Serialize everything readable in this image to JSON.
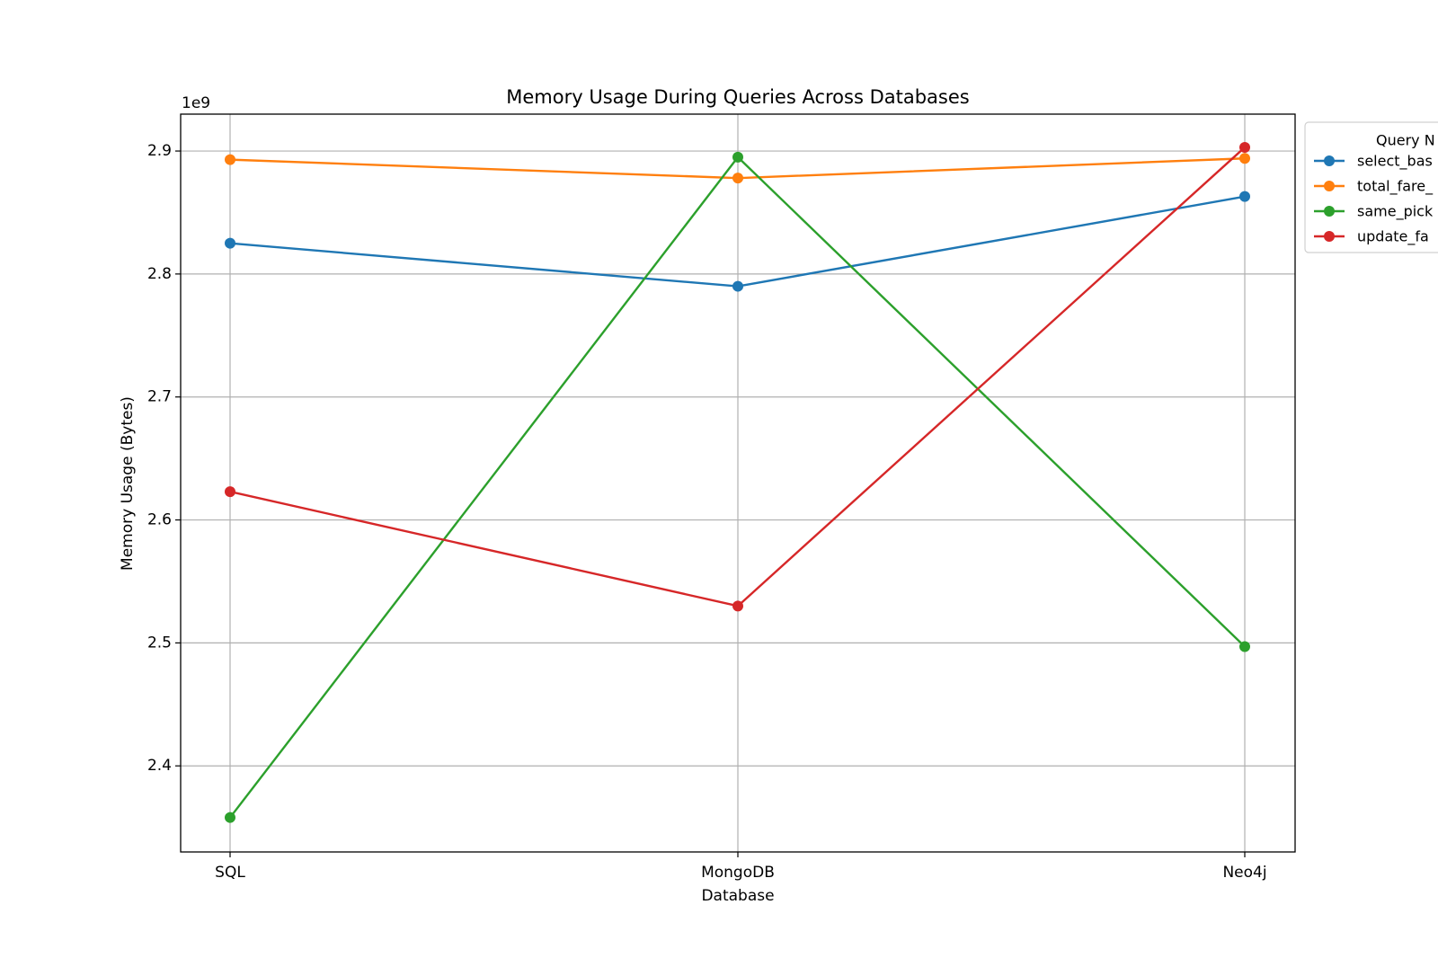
{
  "chart_data": {
    "type": "line",
    "title": "Memory Usage During Queries Across Databases",
    "xlabel": "Database",
    "ylabel": "Memory Usage (Bytes)",
    "y_offset_label": "1e9",
    "categories": [
      "SQL",
      "MongoDB",
      "Neo4j"
    ],
    "yticks": [
      "2.4",
      "2.5",
      "2.6",
      "2.7",
      "2.8",
      "2.9"
    ],
    "ytick_values": [
      2.4,
      2.5,
      2.6,
      2.7,
      2.8,
      2.9
    ],
    "ylim": [
      2.33,
      2.93
    ],
    "grid": true,
    "legend": {
      "title": "Query N",
      "placement": "outside-right-top"
    },
    "series": [
      {
        "name": "select_bas",
        "color": "#1f77b4",
        "values": [
          2.825,
          2.79,
          2.863
        ]
      },
      {
        "name": "total_fare_",
        "color": "#ff7f0e",
        "values": [
          2.893,
          2.878,
          2.894
        ]
      },
      {
        "name": "same_pick",
        "color": "#2ca02c",
        "values": [
          2.358,
          2.895,
          2.497
        ]
      },
      {
        "name": "update_fa",
        "color": "#d62728",
        "values": [
          2.623,
          2.53,
          2.903
        ]
      }
    ]
  }
}
